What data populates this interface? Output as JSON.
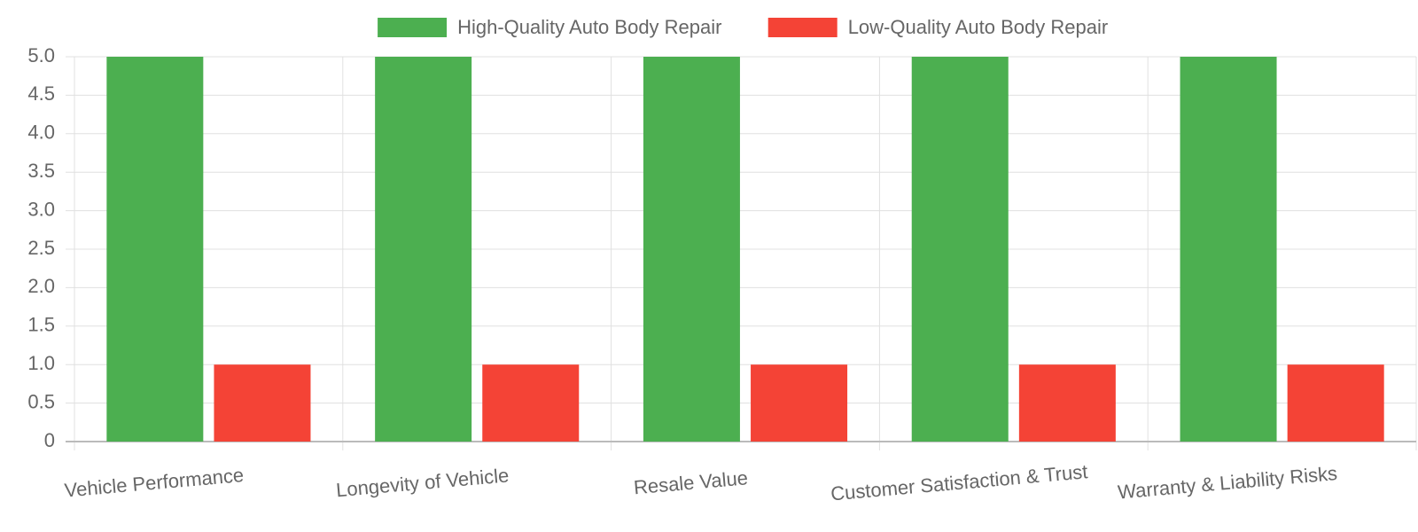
{
  "chart_data": {
    "type": "bar",
    "categories": [
      "Vehicle Performance",
      "Longevity of Vehicle",
      "Resale Value",
      "Customer Satisfaction & Trust",
      "Warranty & Liability Risks"
    ],
    "series": [
      {
        "name": "High-Quality Auto Body Repair",
        "color": "#4caf50",
        "values": [
          5,
          5,
          5,
          5,
          5
        ]
      },
      {
        "name": "Low-Quality Auto Body Repair",
        "color": "#f44336",
        "values": [
          1,
          1,
          1,
          1,
          1
        ]
      }
    ],
    "ylim": [
      0,
      5
    ],
    "yticks": [
      0,
      0.5,
      {
        "value": 1,
        "label": "1.0"
      },
      1.5,
      {
        "value": 2,
        "label": "2.0"
      },
      2.5,
      {
        "value": 3,
        "label": "3.0"
      },
      3.5,
      {
        "value": 4,
        "label": "4.0"
      },
      4.5,
      {
        "value": 5,
        "label": "5.0"
      }
    ],
    "grid": true,
    "legend": "top"
  }
}
